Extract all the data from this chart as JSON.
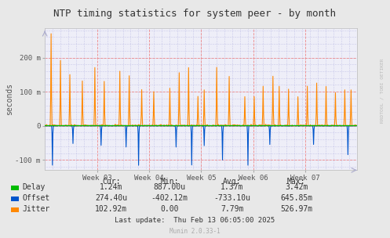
{
  "title": "NTP timing statistics for system peer - by month",
  "ylabel": "seconds",
  "bg_color": "#e8e8e8",
  "plot_bg_color": "#f0f0f8",
  "y_min": -0.13,
  "y_max": 0.285,
  "y_ticks": [
    -0.1,
    0.0,
    0.1,
    0.2
  ],
  "y_tick_labels": [
    "-100 m",
    "0",
    "100 m",
    "200 m"
  ],
  "x_tick_positions": [
    0.167,
    0.334,
    0.501,
    0.668,
    0.835
  ],
  "x_tick_labels": [
    "Week 03",
    "Week 04",
    "Week 05",
    "Week 06",
    "Week 07"
  ],
  "delay_color": "#00bb00",
  "offset_color": "#0055cc",
  "jitter_color": "#ff8800",
  "stats_header": [
    "Cur:",
    "Min:",
    "Avg:",
    "Max:"
  ],
  "stats_delay": [
    "1.24m",
    "887.00u",
    "1.37m",
    "3.42m"
  ],
  "stats_offset": [
    "274.40u",
    "-402.12m",
    "-733.10u",
    "645.85m"
  ],
  "stats_jitter": [
    "102.92m",
    "0.00",
    "7.79m",
    "526.97m"
  ],
  "last_update": "Last update:  Thu Feb 13 06:05:00 2025",
  "munin_version": "Munin 2.0.33-1",
  "watermark": "RRDTOOL / TOBI OETIKER"
}
